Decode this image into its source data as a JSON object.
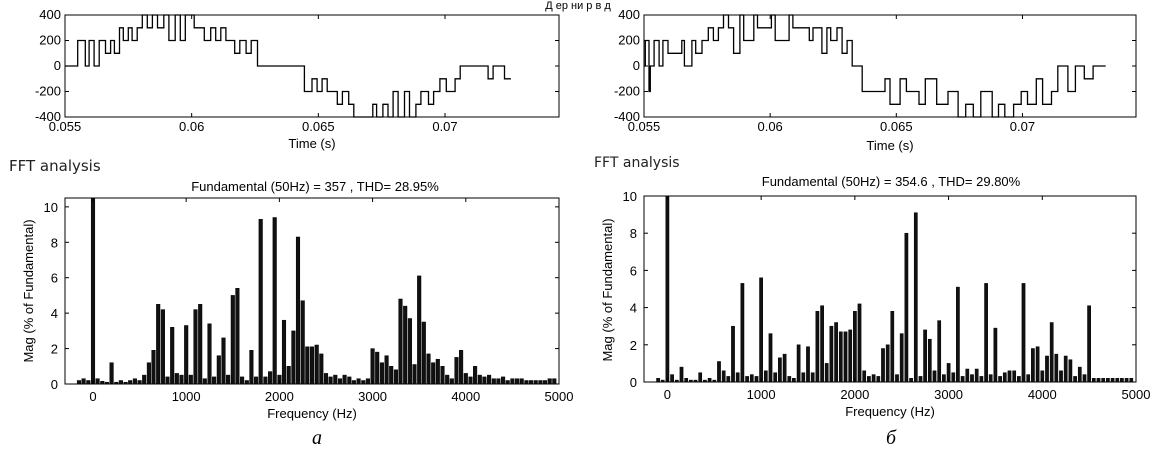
{
  "top_caption": "Д ер ни р в д",
  "panels": [
    {
      "caption": "а",
      "fft_label": "FFT analysis",
      "fft_title": "Fundamental (50Hz) = 357 , THD= 28.95%",
      "waveform": {
        "type": "line",
        "xlabel": "Time (s)",
        "ylabel": "",
        "xlim": [
          0.055,
          0.0745
        ],
        "ylim": [
          -400,
          400
        ],
        "xticks": [
          0.055,
          0.06,
          0.065,
          0.07
        ],
        "xtick_labels": [
          "0.055",
          "0.06",
          "0.065",
          "0.07"
        ],
        "yticks": [
          400,
          200,
          0,
          -200,
          -400
        ],
        "ytick_labels": [
          "400",
          "200",
          "0",
          "-200",
          "-400"
        ],
        "grid": false,
        "levels": [
          0,
          200,
          0,
          200,
          0,
          200,
          100,
          200,
          100,
          300,
          200,
          300,
          200,
          300,
          400,
          300,
          400,
          300,
          400,
          200,
          400,
          200,
          400,
          300,
          200,
          300,
          200,
          300,
          200,
          100,
          200,
          100,
          200,
          0,
          -200,
          -100,
          -200,
          -100,
          -200,
          -300,
          -200,
          -300,
          -400,
          -300,
          -400,
          -300,
          -400,
          -200,
          -400,
          -200,
          -400,
          -300,
          -200,
          -300,
          -200,
          -100,
          -200,
          -100,
          0,
          -100,
          0,
          -100
        ],
        "times": [
          0.0555,
          0.0558,
          0.05595,
          0.05615,
          0.05635,
          0.0566,
          0.0568,
          0.05695,
          0.05715,
          0.0573,
          0.0575,
          0.05765,
          0.05785,
          0.05805,
          0.05825,
          0.05845,
          0.05865,
          0.0589,
          0.0591,
          0.05935,
          0.05955,
          0.05975,
          0.0601,
          0.0605,
          0.06075,
          0.06095,
          0.06115,
          0.06135,
          0.0617,
          0.0619,
          0.06215,
          0.06235,
          0.0626,
          0.06445,
          0.06475,
          0.06495,
          0.06515,
          0.06535,
          0.06575,
          0.06595,
          0.0662,
          0.0664,
          0.06715,
          0.0673,
          0.06755,
          0.06775,
          0.06795,
          0.06815,
          0.0684,
          0.0686,
          0.06885,
          0.06905,
          0.06935,
          0.06955,
          0.0698,
          0.07005,
          0.0704,
          0.0706,
          0.0717,
          0.0719,
          0.07235,
          0.0726
        ]
      },
      "fft": {
        "type": "bar",
        "xlabel": "Frequency (Hz)",
        "ylabel": "Mag (% of Fundamental)",
        "xlim": [
          -300,
          5000
        ],
        "ylim": [
          0,
          10.5
        ],
        "xticks": [
          0,
          1000,
          2000,
          3000,
          4000,
          5000
        ],
        "xtick_labels": [
          "0",
          "1000",
          "2000",
          "3000",
          "4000",
          "5000"
        ],
        "yticks": [
          0,
          2,
          4,
          6,
          8,
          10
        ],
        "ytick_labels": [
          "0",
          "2",
          "4",
          "6",
          "8",
          "10"
        ],
        "grid": false,
        "frequency": [
          -150,
          -100,
          -50,
          0,
          50,
          100,
          150,
          200,
          250,
          300,
          350,
          400,
          450,
          500,
          550,
          600,
          650,
          700,
          750,
          800,
          850,
          900,
          950,
          1000,
          1050,
          1100,
          1150,
          1200,
          1250,
          1300,
          1350,
          1400,
          1450,
          1500,
          1550,
          1600,
          1650,
          1700,
          1750,
          1800,
          1850,
          1900,
          1950,
          2000,
          2050,
          2100,
          2150,
          2200,
          2250,
          2300,
          2350,
          2400,
          2450,
          2500,
          2550,
          2600,
          2650,
          2700,
          2750,
          2800,
          2850,
          2900,
          2950,
          3000,
          3050,
          3100,
          3150,
          3200,
          3250,
          3300,
          3350,
          3400,
          3450,
          3500,
          3550,
          3600,
          3650,
          3700,
          3750,
          3800,
          3850,
          3900,
          3950,
          4000,
          4050,
          4100,
          4150,
          4200,
          4250,
          4300,
          4350,
          4400,
          4450,
          4500,
          4550,
          4600,
          4650,
          4700,
          4750,
          4800,
          4850,
          4900,
          4950
        ],
        "magnitude": [
          0.2,
          0.3,
          0.2,
          10.5,
          0.3,
          0.15,
          0.1,
          1.2,
          0.1,
          0.2,
          0.1,
          0.2,
          0.3,
          0.2,
          0.5,
          1.2,
          1.9,
          4.5,
          4.2,
          0.4,
          3.2,
          0.6,
          0.5,
          3.3,
          0.5,
          4.2,
          4.5,
          0.3,
          3.4,
          0.4,
          1.6,
          2.6,
          0.5,
          5.0,
          5.4,
          0.4,
          0.2,
          1.9,
          0.4,
          9.3,
          0.4,
          0.7,
          9.4,
          0.5,
          3.6,
          1.0,
          3.0,
          8.3,
          4.7,
          2.1,
          2.1,
          2.2,
          1.7,
          0.6,
          0.4,
          0.5,
          0.3,
          0.5,
          0.4,
          0.2,
          0.3,
          0.2,
          0.3,
          2.0,
          1.8,
          1.2,
          1.6,
          1.0,
          0.8,
          4.8,
          4.4,
          3.7,
          1.1,
          6.1,
          3.5,
          1.7,
          1.2,
          1.4,
          1.0,
          0.5,
          0.3,
          1.5,
          1.9,
          0.6,
          0.4,
          1.0,
          0.5,
          0.4,
          0.5,
          0.3,
          0.3,
          0.4,
          0.2,
          0.3,
          0.3,
          0.3,
          0.2,
          0.2,
          0.2,
          0.2,
          0.2,
          0.3,
          0.3
        ]
      }
    },
    {
      "caption": "б",
      "fft_label": "FFT analysis",
      "fft_title": "Fundamental (50Hz) = 354.6 , THD= 29.80%",
      "waveform": {
        "type": "line",
        "xlabel": "Time (s)",
        "ylabel": "",
        "xlim": [
          0.055,
          0.0745
        ],
        "ylim": [
          -400,
          400
        ],
        "xticks": [
          0.055,
          0.06,
          0.065,
          0.07
        ],
        "xtick_labels": [
          "0.055",
          "0.06",
          "0.065",
          "0.07"
        ],
        "yticks": [
          400,
          200,
          0,
          -200,
          -400
        ],
        "ytick_labels": [
          "400",
          "200",
          "0",
          "-200",
          "-400"
        ],
        "grid": false,
        "levels": [
          0,
          200,
          -200,
          0,
          200,
          0,
          200,
          100,
          200,
          0,
          200,
          100,
          200,
          300,
          200,
          300,
          400,
          300,
          100,
          400,
          200,
          400,
          300,
          400,
          200,
          400,
          300,
          200,
          300,
          100,
          300,
          200,
          300,
          100,
          200,
          0,
          -200,
          -100,
          -300,
          -100,
          -200,
          -300,
          -100,
          -300,
          -200,
          -400,
          -300,
          -400,
          -200,
          -400,
          -300,
          -400,
          -300,
          -200,
          -300,
          -100,
          -300,
          -200,
          0,
          -200,
          0,
          -100,
          0
        ],
        "times": [
          0.05505,
          0.0552,
          0.05525,
          0.0554,
          0.0556,
          0.05575,
          0.05595,
          0.0565,
          0.0566,
          0.0569,
          0.05705,
          0.0573,
          0.05755,
          0.05775,
          0.05795,
          0.05815,
          0.05835,
          0.05855,
          0.0588,
          0.05895,
          0.05935,
          0.0595,
          0.06005,
          0.0602,
          0.06075,
          0.0609,
          0.06155,
          0.0617,
          0.06205,
          0.06225,
          0.0624,
          0.06265,
          0.06285,
          0.06305,
          0.06325,
          0.06365,
          0.06455,
          0.06475,
          0.06515,
          0.0654,
          0.0659,
          0.06615,
          0.0666,
          0.06705,
          0.06745,
          0.06775,
          0.06805,
          0.06835,
          0.0688,
          0.06905,
          0.0693,
          0.06965,
          0.06995,
          0.0702,
          0.07055,
          0.0708,
          0.07115,
          0.0714,
          0.0718,
          0.0721,
          0.07245,
          0.0728,
          0.0733
        ]
      },
      "fft": {
        "type": "bar",
        "xlabel": "Frequency (Hz)",
        "ylabel": "Mag (% of Fundamental)",
        "xlim": [
          -250,
          5000
        ],
        "ylim": [
          0,
          10
        ],
        "xticks": [
          0,
          1000,
          2000,
          3000,
          4000,
          5000
        ],
        "xtick_labels": [
          "0",
          "1000",
          "2000",
          "3000",
          "4000",
          "5000"
        ],
        "yticks": [
          0,
          2,
          4,
          6,
          8,
          10
        ],
        "ytick_labels": [
          "0",
          "2",
          "4",
          "6",
          "8",
          "10"
        ],
        "grid": false,
        "frequency": [
          -100,
          -50,
          0,
          50,
          100,
          150,
          200,
          250,
          300,
          350,
          400,
          450,
          500,
          550,
          600,
          650,
          700,
          750,
          800,
          850,
          900,
          950,
          1000,
          1050,
          1100,
          1150,
          1200,
          1250,
          1300,
          1350,
          1400,
          1450,
          1500,
          1550,
          1600,
          1650,
          1700,
          1750,
          1800,
          1850,
          1900,
          1950,
          2000,
          2050,
          2100,
          2150,
          2200,
          2250,
          2300,
          2350,
          2400,
          2450,
          2500,
          2550,
          2600,
          2650,
          2700,
          2750,
          2800,
          2850,
          2900,
          2950,
          3000,
          3050,
          3100,
          3150,
          3200,
          3250,
          3300,
          3350,
          3400,
          3450,
          3500,
          3550,
          3600,
          3650,
          3700,
          3750,
          3800,
          3850,
          3900,
          3950,
          4000,
          4050,
          4100,
          4150,
          4200,
          4250,
          4300,
          4350,
          4400,
          4450,
          4500,
          4550,
          4600,
          4650,
          4700,
          4750,
          4800,
          4850,
          4900,
          4950
        ],
        "magnitude": [
          0.2,
          0.1,
          10.0,
          0.4,
          0.1,
          0.8,
          0.2,
          0.1,
          0.1,
          0.5,
          0.1,
          0.2,
          0.1,
          1.1,
          0.6,
          0.3,
          3.0,
          0.5,
          5.3,
          0.3,
          0.4,
          0.3,
          5.6,
          0.6,
          2.6,
          0.5,
          1.3,
          1.5,
          0.3,
          0.2,
          2.0,
          0.5,
          1.9,
          0.5,
          3.8,
          4.1,
          1.0,
          3.0,
          3.2,
          2.7,
          2.7,
          2.8,
          3.8,
          4.2,
          0.6,
          0.3,
          0.4,
          0.3,
          1.8,
          2.0,
          3.8,
          0.4,
          2.6,
          8.0,
          0.2,
          9.1,
          0.3,
          2.8,
          2.3,
          0.6,
          3.3,
          0.4,
          1.0,
          0.5,
          5.1,
          0.3,
          0.7,
          0.4,
          0.7,
          0.3,
          5.3,
          0.4,
          2.9,
          0.3,
          0.5,
          0.6,
          0.6,
          0.3,
          5.3,
          0.4,
          1.8,
          1.9,
          0.6,
          1.4,
          3.2,
          1.5,
          0.6,
          1.4,
          1.2,
          0.3,
          0.8,
          0.4,
          4.1,
          0.2,
          0.2,
          0.2,
          0.2,
          0.2,
          0.2,
          0.2,
          0.2,
          0.2
        ]
      }
    }
  ]
}
